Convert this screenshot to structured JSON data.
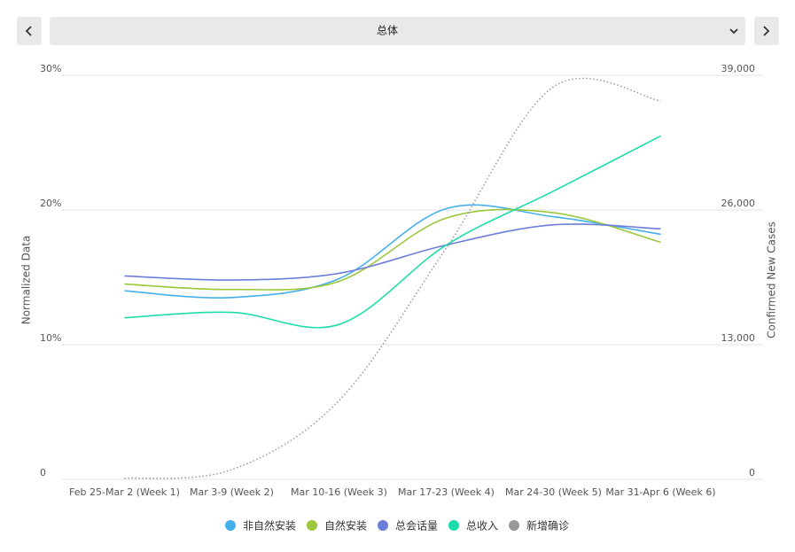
{
  "selector": {
    "label": "总体"
  },
  "chart_data": {
    "type": "line",
    "y_label": "Normalized Data",
    "y2_label": "Confirmed New Cases",
    "categories": [
      "Feb 25-Mar 2 (Week 1)",
      "Mar 3-9 (Week 2)",
      "Mar 10-16 (Week 3)",
      "Mar 17-23 (Week 4)",
      "Mar 24-30 (Week 5)",
      "Mar 31-Apr 6 (Week 6)"
    ],
    "ylim": [
      0,
      30
    ],
    "yticks": [
      0,
      {
        "value": 10,
        "label": "10%"
      },
      {
        "value": 20,
        "label": "20%"
      },
      {
        "value": 30,
        "label": "30%"
      }
    ],
    "y2lim": [
      0,
      39000
    ],
    "y2ticks": [
      0,
      {
        "value": 13000,
        "label": "13,000"
      },
      {
        "value": 26000,
        "label": "26,000"
      },
      {
        "value": 39000,
        "label": "39,000"
      }
    ],
    "grid": true,
    "legend": "bottom",
    "series": [
      {
        "name": "非自然安装",
        "color": "#45b0ea",
        "values": [
          14.0,
          13.5,
          14.9,
          20.1,
          19.5,
          18.2
        ]
      },
      {
        "name": "自然安装",
        "color": "#9ac83a",
        "values": [
          14.5,
          14.1,
          14.7,
          19.4,
          19.8,
          17.6
        ]
      },
      {
        "name": "总会话量",
        "color": "#6b7ed8",
        "values": [
          15.1,
          14.8,
          15.3,
          17.4,
          18.9,
          18.6
        ]
      },
      {
        "name": "总收入",
        "color": "#1edcaa",
        "values": [
          12.0,
          12.4,
          11.5,
          17.4,
          21.4,
          25.5
        ]
      },
      {
        "name": "新增确诊",
        "color": "#999999",
        "dash": "dotted",
        "axis": "y2",
        "values": [
          100,
          940,
          7610,
          22320,
          37890,
          36520
        ]
      }
    ]
  }
}
